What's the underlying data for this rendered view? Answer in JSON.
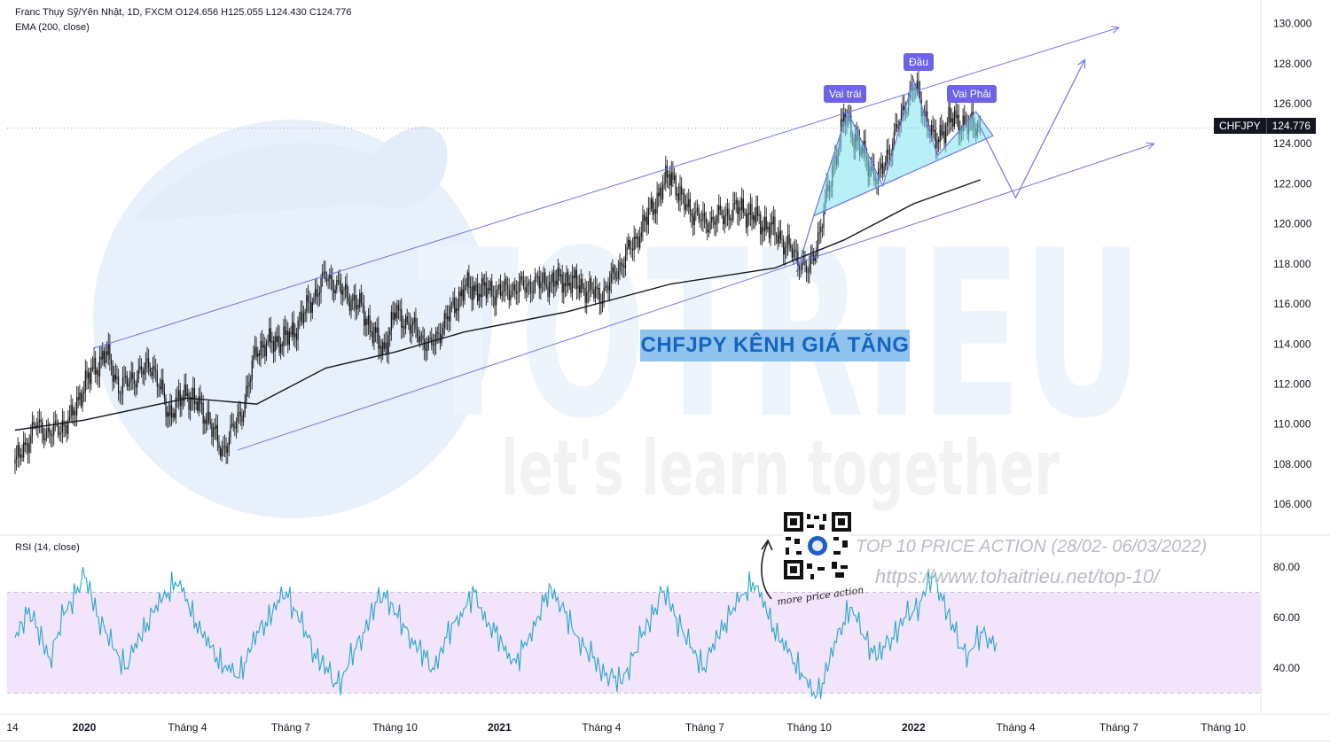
{
  "header": {
    "line1": "Franc Thụy Sỹ/Yên Nhật, 1D, FXCM  O124.656  H125.055  L124.430  C124.776",
    "line2": "EMA (200, close)"
  },
  "rsi_header": "RSI (14, close)",
  "price_tag": {
    "symbol": "CHFJPY",
    "value": "124.776"
  },
  "annotations": {
    "title": "CHFJPY KÊNH GIÁ TĂNG",
    "left_shoulder": "Vai trái",
    "head": "Đầu",
    "right_shoulder": "Vai Phải",
    "promo_line1": "TOP 10 PRICE ACTION (28/02- 06/03/2022)",
    "promo_line2": "https://www.tohaitrieu.net/top-10/",
    "more": "more price action"
  },
  "watermark": {
    "brand": "TOTRIEU",
    "slogan": "let's learn together"
  },
  "colors": {
    "channel": "#6f74f0",
    "pattern_fill": "#7fe3f0",
    "rsi_line": "#29a7c9",
    "rsi_band": "#f1e4fb",
    "ema": "#131722"
  },
  "chart_data": [
    {
      "type": "candlestick",
      "title": "CHFJPY 1D",
      "y_ticks": [
        "130.000",
        "128.000",
        "126.000",
        "124.000",
        "122.000",
        "120.000",
        "118.000",
        "116.000",
        "114.000",
        "112.000",
        "110.000",
        "108.000",
        "106.000"
      ],
      "ylim": [
        104.5,
        131
      ],
      "x_ticks": [
        "14",
        "2020",
        "Tháng 4",
        "Tháng 7",
        "Tháng 10",
        "2021",
        "Tháng 4",
        "Tháng 7",
        "Tháng 10",
        "2022",
        "Tháng 4",
        "Tháng 7",
        "Tháng 10"
      ],
      "price_path": [
        [
          "2019-11",
          108.0
        ],
        [
          "2019-11-20",
          110.0
        ],
        [
          "2019-12",
          109.5
        ],
        [
          "2019-12-20",
          110.2
        ],
        [
          "2020-01",
          112.0
        ],
        [
          "2020-01-20",
          113.6
        ],
        [
          "2020-02",
          111.8
        ],
        [
          "2020-03",
          113.0
        ],
        [
          "2020-03-15",
          110.5
        ],
        [
          "2020-04",
          111.6
        ],
        [
          "2020-04-20",
          110.2
        ],
        [
          "2020-05",
          108.6
        ],
        [
          "2020-05-20",
          110.8
        ],
        [
          "2020-06",
          113.8
        ],
        [
          "2020-07",
          114.4
        ],
        [
          "2020-08",
          117.4
        ],
        [
          "2020-08-20",
          116.4
        ],
        [
          "2020-09",
          115.8
        ],
        [
          "2020-09-20",
          113.6
        ],
        [
          "2020-10",
          115.6
        ],
        [
          "2020-10-20",
          114.6
        ],
        [
          "2020-11",
          113.8
        ],
        [
          "2020-12",
          116.8
        ],
        [
          "2021-01",
          116.6
        ],
        [
          "2021-02",
          117.0
        ],
        [
          "2021-03",
          117.2
        ],
        [
          "2021-04",
          116.4
        ],
        [
          "2021-05",
          119.2
        ],
        [
          "2021-06",
          122.6
        ],
        [
          "2021-06-10",
          121.2
        ],
        [
          "2021-07",
          120.0
        ],
        [
          "2021-08",
          120.8
        ],
        [
          "2021-09",
          119.6
        ],
        [
          "2021-10",
          117.6
        ],
        [
          "2021-10-10",
          119.6
        ],
        [
          "2021-11",
          125.4
        ],
        [
          "2021-11-20",
          123.2
        ],
        [
          "2021-12",
          122.2
        ],
        [
          "2022-01",
          127.0
        ],
        [
          "2022-01-20",
          124.0
        ],
        [
          "2022-02",
          125.2
        ],
        [
          "2022-03",
          124.8
        ]
      ],
      "ema200": [
        [
          "2019-11",
          109.7
        ],
        [
          "2020-01",
          110.2
        ],
        [
          "2020-04",
          111.3
        ],
        [
          "2020-06",
          111.0
        ],
        [
          "2020-08",
          112.8
        ],
        [
          "2020-10",
          113.6
        ],
        [
          "2020-12",
          114.6
        ],
        [
          "2021-03",
          115.6
        ],
        [
          "2021-06",
          117.0
        ],
        [
          "2021-09",
          117.8
        ],
        [
          "2021-11",
          119.2
        ],
        [
          "2022-01",
          121.0
        ],
        [
          "2022-03",
          122.2
        ]
      ],
      "forecast": [
        [
          "2022-03",
          124.8
        ],
        [
          "2022-04",
          121.3
        ],
        [
          "2022-06",
          128.2
        ]
      ],
      "channel_upper": [
        [
          "2020-01-10",
          113.8
        ],
        [
          "2022-07",
          129.8
        ]
      ],
      "channel_lower": [
        [
          "2020-05-15",
          108.7
        ],
        [
          "2022-08",
          124.0
        ]
      ]
    },
    {
      "type": "line",
      "title": "RSI (14, close)",
      "y_ticks": [
        "80.00",
        "60.00",
        "40.00"
      ],
      "ylim": [
        22,
        92
      ],
      "band": [
        30,
        70
      ],
      "values": [
        52,
        58,
        64,
        56,
        50,
        44,
        52,
        61,
        66,
        72,
        76,
        68,
        60,
        54,
        48,
        44,
        40,
        46,
        52,
        58,
        62,
        66,
        70,
        74,
        70,
        64,
        58,
        52,
        48,
        44,
        40,
        38,
        36,
        42,
        48,
        54,
        58,
        62,
        66,
        70,
        64,
        58,
        52,
        46,
        42,
        38,
        34,
        36,
        42,
        48,
        54,
        60,
        66,
        70,
        66,
        60,
        56,
        52,
        48,
        44,
        40,
        46,
        52,
        58,
        62,
        66,
        70,
        64,
        58,
        54,
        50,
        46,
        42,
        48,
        54,
        60,
        66,
        72,
        68,
        62,
        56,
        52,
        48,
        44,
        40,
        38,
        36,
        34,
        40,
        46,
        52,
        58,
        64,
        70,
        66,
        60,
        54,
        48,
        44,
        40,
        46,
        52,
        58,
        62,
        66,
        70,
        74,
        68,
        62,
        56,
        50,
        46,
        42,
        38,
        32,
        28,
        34,
        42,
        50,
        58,
        64,
        58,
        52,
        48,
        44,
        48,
        52,
        56,
        60,
        62,
        66,
        72,
        76,
        70,
        62,
        54,
        48,
        46,
        50,
        54,
        52,
        50
      ]
    }
  ]
}
